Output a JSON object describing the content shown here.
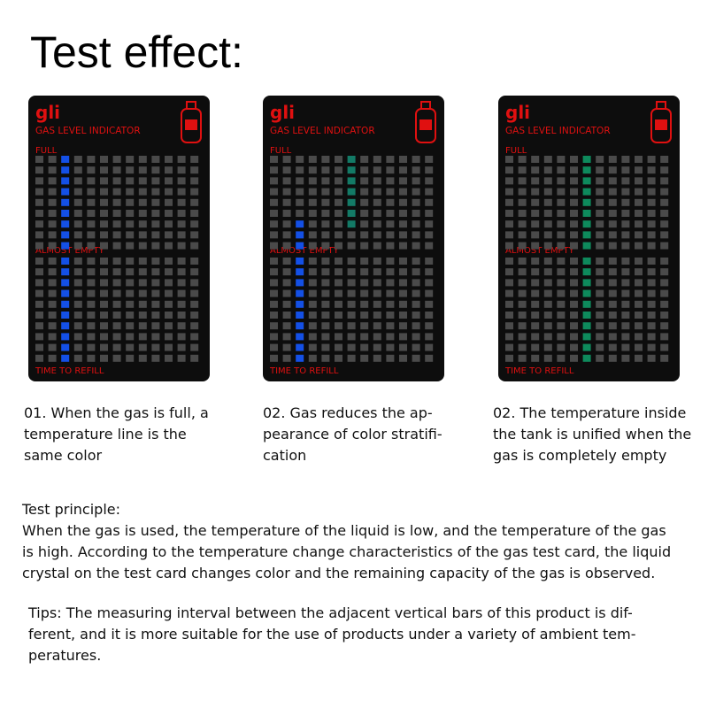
{
  "title": "Test effect:",
  "cards": [
    {
      "brand": "gli",
      "heading": "GAS LEVEL INDICATOR",
      "top_label": "FULL",
      "middle_label": "ALMOST EMPTY",
      "bottom_label": "TIME TO REFILL",
      "caption": [
        "01. When the gas is full, a",
        "temperature line is the",
        "same color"
      ]
    },
    {
      "brand": "gli",
      "heading": "GAS LEVEL INDICATOR",
      "top_label": "FULL",
      "middle_label": "ALMOST EMPTY",
      "bottom_label": "TIME TO REFILL",
      "caption": [
        "02. Gas reduces the ap-",
        "pearance of color stratifi-",
        "cation"
      ]
    },
    {
      "brand": "gli",
      "heading": "GAS LEVEL INDICATOR",
      "top_label": "FULL",
      "middle_label": "ALMOST EMPTY",
      "bottom_label": "TIME TO REFILL",
      "caption": [
        "02. The temperature inside",
        "the tank is unified when the",
        "gas is completely empty"
      ]
    }
  ],
  "principle": [
    "Test principle:",
    "When the gas is used, the temperature of the liquid is low, and the temperature of the gas",
    "is high. According to the temperature change characteristics of the gas test card, the liquid",
    "crystal on the test card changes color and the remaining capacity of the gas is observed."
  ],
  "tips": [
    "Tips: The measuring interval between the adjacent vertical bars of this product is dif-",
    "ferent, and it is more suitable for the use of products under a variety of ambient tem-",
    "peratures."
  ]
}
